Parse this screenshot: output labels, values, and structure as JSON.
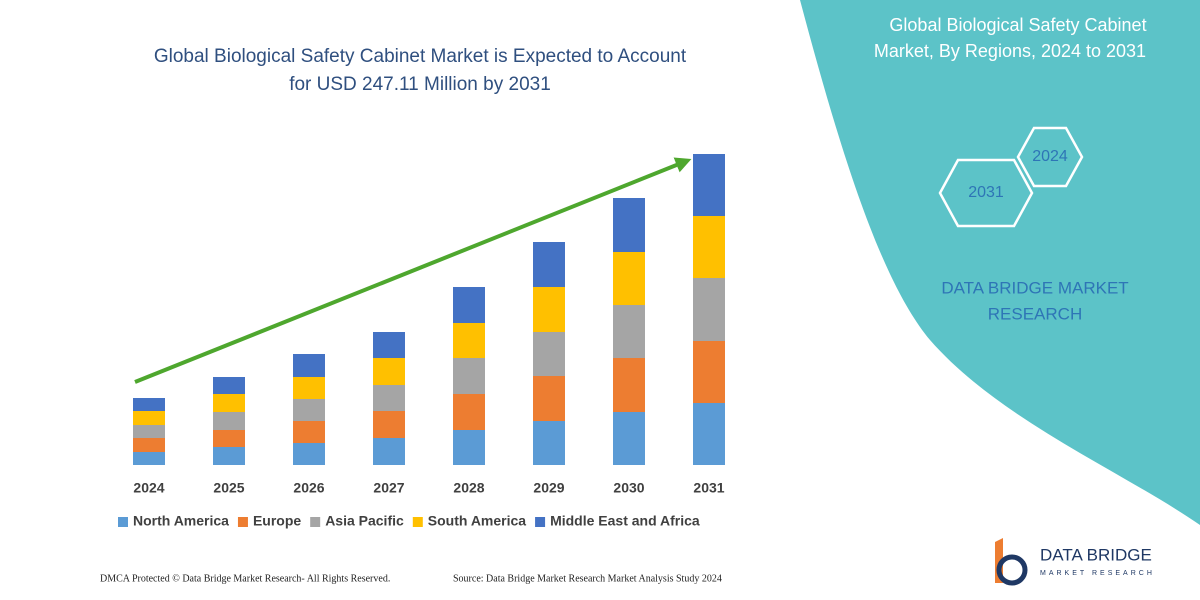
{
  "chart_data": {
    "type": "bar",
    "stacked": true,
    "title": [
      "Global Biological Safety Cabinet Market is Expected to Account",
      "for USD 247.11 Million by 2031"
    ],
    "categories": [
      "2024",
      "2025",
      "2026",
      "2027",
      "2028",
      "2029",
      "2030",
      "2031"
    ],
    "series": [
      {
        "name": "North America",
        "color": "#5b9bd5",
        "values": [
          13,
          18,
          22,
          27,
          35,
          44,
          53,
          62
        ]
      },
      {
        "name": "Europe",
        "color": "#ed7d31",
        "values": [
          14,
          17,
          22,
          27,
          36,
          45,
          54,
          62
        ]
      },
      {
        "name": "Asia Pacific",
        "color": "#a5a5a5",
        "values": [
          13,
          18,
          22,
          26,
          36,
          44,
          53,
          63
        ]
      },
      {
        "name": "South America",
        "color": "#ffc000",
        "values": [
          14,
          18,
          22,
          27,
          35,
          45,
          53,
          62
        ]
      },
      {
        "name": "Middle East and Africa",
        "color": "#4472c4",
        "values": [
          13,
          17,
          23,
          26,
          36,
          45,
          54,
          62
        ]
      }
    ],
    "legend": "bottom"
  },
  "panel": {
    "title": [
      "Global Biological Safety Cabinet",
      "Market, By Regions, 2024 to 2031"
    ],
    "hexagons": [
      "2024",
      "2031"
    ],
    "brand": [
      "DATA BRIDGE MARKET",
      "RESEARCH"
    ]
  },
  "logo": {
    "name": "DATA BRIDGE",
    "tagline": "MARKET RESEARCH"
  },
  "footer": {
    "left": "DMCA Protected © Data Bridge Market Research-  All Rights Reserved.",
    "right": "Source: Data Bridge Market Research  Market Analysis Study 2024"
  }
}
